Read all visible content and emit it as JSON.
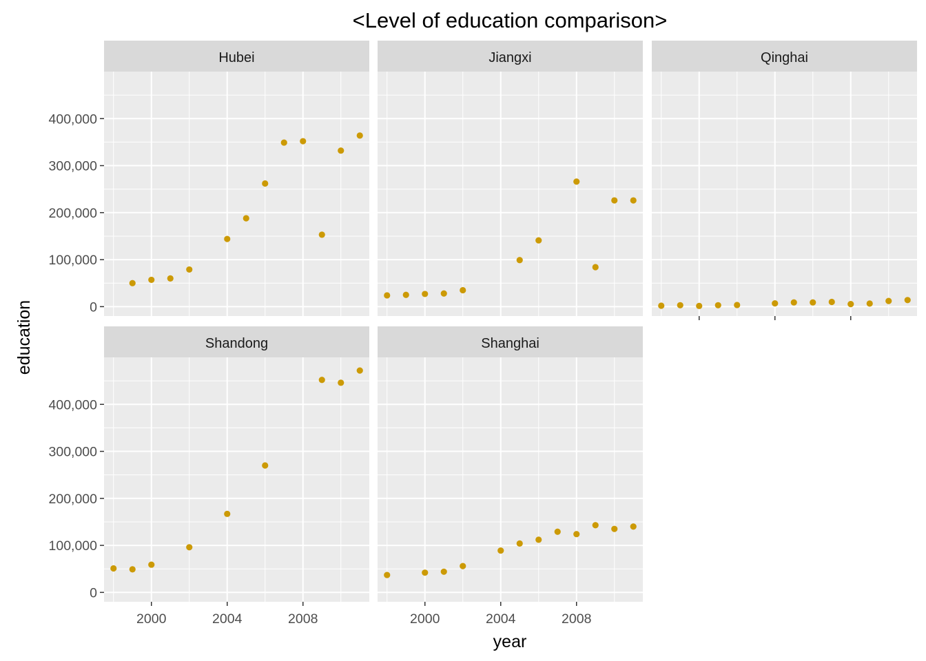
{
  "chart_data": {
    "type": "scatter",
    "title": "<Level of education comparison>",
    "xlabel": "year",
    "ylabel": "education",
    "xlim": [
      1997.5,
      2011.5
    ],
    "ylim": [
      -20000,
      500000
    ],
    "x_ticks": [
      2000,
      2004,
      2008
    ],
    "x_tick_labels": [
      "2000",
      "2004",
      "2008"
    ],
    "y_ticks": [
      0,
      100000,
      200000,
      300000,
      400000
    ],
    "y_tick_labels": [
      "0",
      "100,000",
      "200,000",
      "300,000",
      "400,000"
    ],
    "grid": true,
    "point_color": "#CC9A06",
    "panel_background": "#EBEBEB",
    "strip_background": "#D9D9D9",
    "facets": [
      {
        "name": "Hubei",
        "points": [
          [
            1999,
            50000
          ],
          [
            2000,
            57000
          ],
          [
            2001,
            60000
          ],
          [
            2002,
            79000
          ],
          [
            2004,
            144000
          ],
          [
            2005,
            188000
          ],
          [
            2006,
            262000
          ],
          [
            2007,
            349000
          ],
          [
            2008,
            352000
          ],
          [
            2009,
            153000
          ],
          [
            2010,
            332000
          ],
          [
            2011,
            364000
          ]
        ]
      },
      {
        "name": "Jiangxi",
        "points": [
          [
            1998,
            24000
          ],
          [
            1999,
            25000
          ],
          [
            2000,
            27000
          ],
          [
            2001,
            28000
          ],
          [
            2002,
            35000
          ],
          [
            2005,
            99000
          ],
          [
            2006,
            141000
          ],
          [
            2008,
            266000
          ],
          [
            2009,
            84000
          ],
          [
            2010,
            226000
          ],
          [
            2011,
            226000
          ]
        ]
      },
      {
        "name": "Qinghai",
        "points": [
          [
            1998,
            2000
          ],
          [
            1999,
            3000
          ],
          [
            2000,
            1500
          ],
          [
            2001,
            3000
          ],
          [
            2002,
            3500
          ],
          [
            2004,
            7000
          ],
          [
            2005,
            9000
          ],
          [
            2006,
            9000
          ],
          [
            2007,
            10000
          ],
          [
            2008,
            5500
          ],
          [
            2009,
            6500
          ],
          [
            2010,
            12000
          ],
          [
            2011,
            14000
          ]
        ]
      },
      {
        "name": "Shandong",
        "points": [
          [
            1998,
            51000
          ],
          [
            1999,
            49000
          ],
          [
            2000,
            59000
          ],
          [
            2002,
            96000
          ],
          [
            2004,
            167000
          ],
          [
            2006,
            270000
          ],
          [
            2009,
            452000
          ],
          [
            2010,
            446000
          ],
          [
            2011,
            472000
          ]
        ]
      },
      {
        "name": "Shanghai",
        "points": [
          [
            1998,
            37000
          ],
          [
            2000,
            42000
          ],
          [
            2001,
            44000
          ],
          [
            2002,
            56000
          ],
          [
            2004,
            89000
          ],
          [
            2005,
            104000
          ],
          [
            2006,
            112000
          ],
          [
            2007,
            129000
          ],
          [
            2008,
            124000
          ],
          [
            2009,
            143000
          ],
          [
            2010,
            135000
          ],
          [
            2011,
            140000
          ]
        ]
      }
    ]
  }
}
